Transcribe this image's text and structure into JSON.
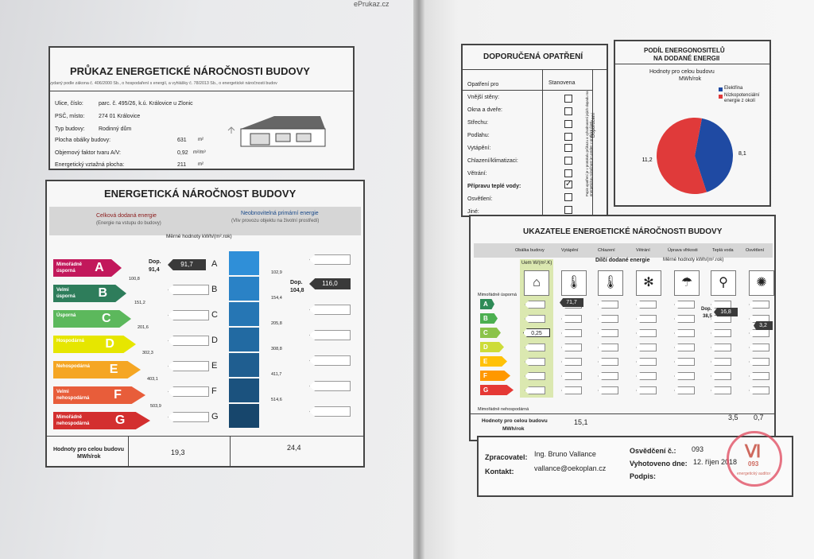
{
  "site": "ePrukaz.cz",
  "left": {
    "header": {
      "title": "PRŮKAZ ENERGETICKÉ NÁROČNOSTI BUDOVY",
      "subtitle": "vydaný podle zákona č. 406/2000 Sb., o hospodaření s energií, a vyhlášky č. 78/2013 Sb., o energetické náročnosti budov",
      "fields": [
        {
          "label": "Ulice, číslo:",
          "value": "parc. č. 495/26, k.ú. Královice u Zlonic"
        },
        {
          "label": "PSČ, místo:",
          "value": "274 01 Královice"
        },
        {
          "label": "Typ budovy:",
          "value": "Rodinný dům"
        }
      ],
      "metrics": [
        {
          "label": "Plocha obálky budovy:",
          "value": "631",
          "unit": "m²"
        },
        {
          "label": "Objemový faktor tvaru A/V:",
          "value": "0,92",
          "unit": "m²/m³"
        },
        {
          "label": "Energetický vztažná plocha:",
          "value": "211",
          "unit": "m²"
        }
      ]
    },
    "rating": {
      "title": "ENERGETICKÁ NÁROČNOST BUDOVY",
      "col1_title": "Celková dodaná energie",
      "col1_sub": "(Energie na vstupu do budovy)",
      "col2_title": "Neobnovitelná primární energie",
      "col2_sub": "(Vliv provozu objektu na životní prostředí)",
      "units": "Měrné hodnoty kWh/(m².rok)",
      "classes": [
        {
          "letter": "A",
          "name1": "Mimořádně",
          "name2": "úsporná",
          "color": "#c2185b",
          "limit": "100,8"
        },
        {
          "letter": "B",
          "name1": "Velmi",
          "name2": "úsporná",
          "color": "#2e7d5b",
          "limit": "151,2"
        },
        {
          "letter": "C",
          "name1": "Úsporná",
          "name2": "",
          "color": "#5cb85c",
          "limit": "201,6"
        },
        {
          "letter": "D",
          "name1": "Hospodárná",
          "name2": "",
          "color": "#e6e600",
          "limit": "302,3"
        },
        {
          "letter": "E",
          "name1": "Nehospodárná",
          "name2": "",
          "color": "#f5a623",
          "limit": "403,1"
        },
        {
          "letter": "F",
          "name1": "Velmi",
          "name2": "nehospodárná",
          "color": "#e85d3a",
          "limit": "503,9"
        },
        {
          "letter": "G",
          "name1": "Mimořádně",
          "name2": "nehospodárná",
          "color": "#d32f2f",
          "limit": ""
        }
      ],
      "letters": [
        "A",
        "B",
        "C",
        "D",
        "E",
        "F",
        "G"
      ],
      "primary_limits": [
        "102,9",
        "154,4",
        "205,8",
        "308,8",
        "411,7",
        "514,6"
      ],
      "rec1_label": "Dop.",
      "rec1_value": "91,4",
      "actual1": "91,7",
      "rec2_label": "Dop.",
      "rec2_value": "104,8",
      "actual2": "116,0",
      "total_label": "Hodnoty pro celou budovu",
      "total_unit": "MWh/rok",
      "total1": "19,3",
      "total2": "24,4"
    }
  },
  "right": {
    "measures": {
      "title": "DOPORUČENÁ OPATŘENÍ",
      "col_a": "Opatření pro",
      "col_b": "Stanovena",
      "items": [
        {
          "label": "Vnější stěny:",
          "checked": false
        },
        {
          "label": "Okna a dveře:",
          "checked": false
        },
        {
          "label": "Střechu:",
          "checked": false
        },
        {
          "label": "Podlahu:",
          "checked": false
        },
        {
          "label": "Vytápění:",
          "checked": false
        },
        {
          "label": "Chlazení/klimatizaci:",
          "checked": false
        },
        {
          "label": "Větrání:",
          "checked": false
        },
        {
          "label": "Přípravu teplé vody:",
          "checked": true
        },
        {
          "label": "Osvětlení:",
          "checked": false
        },
        {
          "label": "Jiné:",
          "checked": false
        }
      ],
      "vertical_note": "Popis opatření je v protokolu průkazu a vyhodnocení jejich dopadu na energetickou náročnost je uveden v grafické části",
      "vertical_tag": "Doporučení"
    },
    "share": {
      "title1": "PODÍL ENERGONOSITELŮ",
      "title2": "NA DODANÉ ENERGII",
      "subtitle1": "Hodnoty pro celou budovu",
      "subtitle2": "MWh/rok",
      "legend": [
        {
          "name": "Elektřina",
          "color": "#1f4aa3"
        },
        {
          "name": "Nízkopotenciální energie z okolí",
          "color": "#e03a3a"
        }
      ]
    },
    "chart_data": {
      "type": "pie",
      "labels": [
        "Elektřina",
        "Nízkopotenciální energie z okolí"
      ],
      "values": [
        8.1,
        11.2
      ],
      "value_labels": [
        "8,1",
        "11,2"
      ],
      "colors": [
        "#1f4aa3",
        "#e03a3a"
      ]
    },
    "indicators": {
      "title": "UKAZATELE ENERGETICKÉ NÁROČNOSTI BUDOVY",
      "columns": [
        "Obálka budovy",
        "Vytápění",
        "Chlazení",
        "Větrání",
        "Úprava vlhkosti",
        "Teplá voda",
        "Osvětlení"
      ],
      "uem_label": "Uem W/(m².K)",
      "partial_title": "Dílčí dodané energie",
      "partial_units": "Měrné hodnoty kWh/(m².rok)",
      "scale_top": "Mimořádně úsporná",
      "scale_bottom": "Mimořádně nehospodárná",
      "scale_letters": [
        "A",
        "B",
        "C",
        "D",
        "E",
        "F",
        "G"
      ],
      "scale_colors": [
        "#2e8b57",
        "#4caf50",
        "#8bc34a",
        "#cddc39",
        "#ffc107",
        "#ff9800",
        "#e53935"
      ],
      "envelope_value": "0,25",
      "heating_value": "71,7",
      "hotwater_rec_label": "Dop.",
      "hotwater_rec": "38,5",
      "hotwater_value": "16,8",
      "lighting_value": "3,2",
      "total_label": "Hodnoty pro celou budovu",
      "total_unit": "MWh/rok",
      "totals": [
        "15,1",
        "3,5",
        "0,7"
      ]
    },
    "footer": {
      "prepared_label": "Zpracovatel:",
      "prepared_value": "Ing. Bruno Vallance",
      "contact_label": "Kontakt:",
      "contact_value": "vallance@oekoplan.cz",
      "cert_label": "Osvědčení č.:",
      "cert_value": "093",
      "date_label": "Vyhotoveno dne:",
      "date_value": "12. říjen 2018",
      "sign_label": "Podpis:",
      "stamp_number": "093",
      "stamp_text": "energetický auditor"
    }
  }
}
